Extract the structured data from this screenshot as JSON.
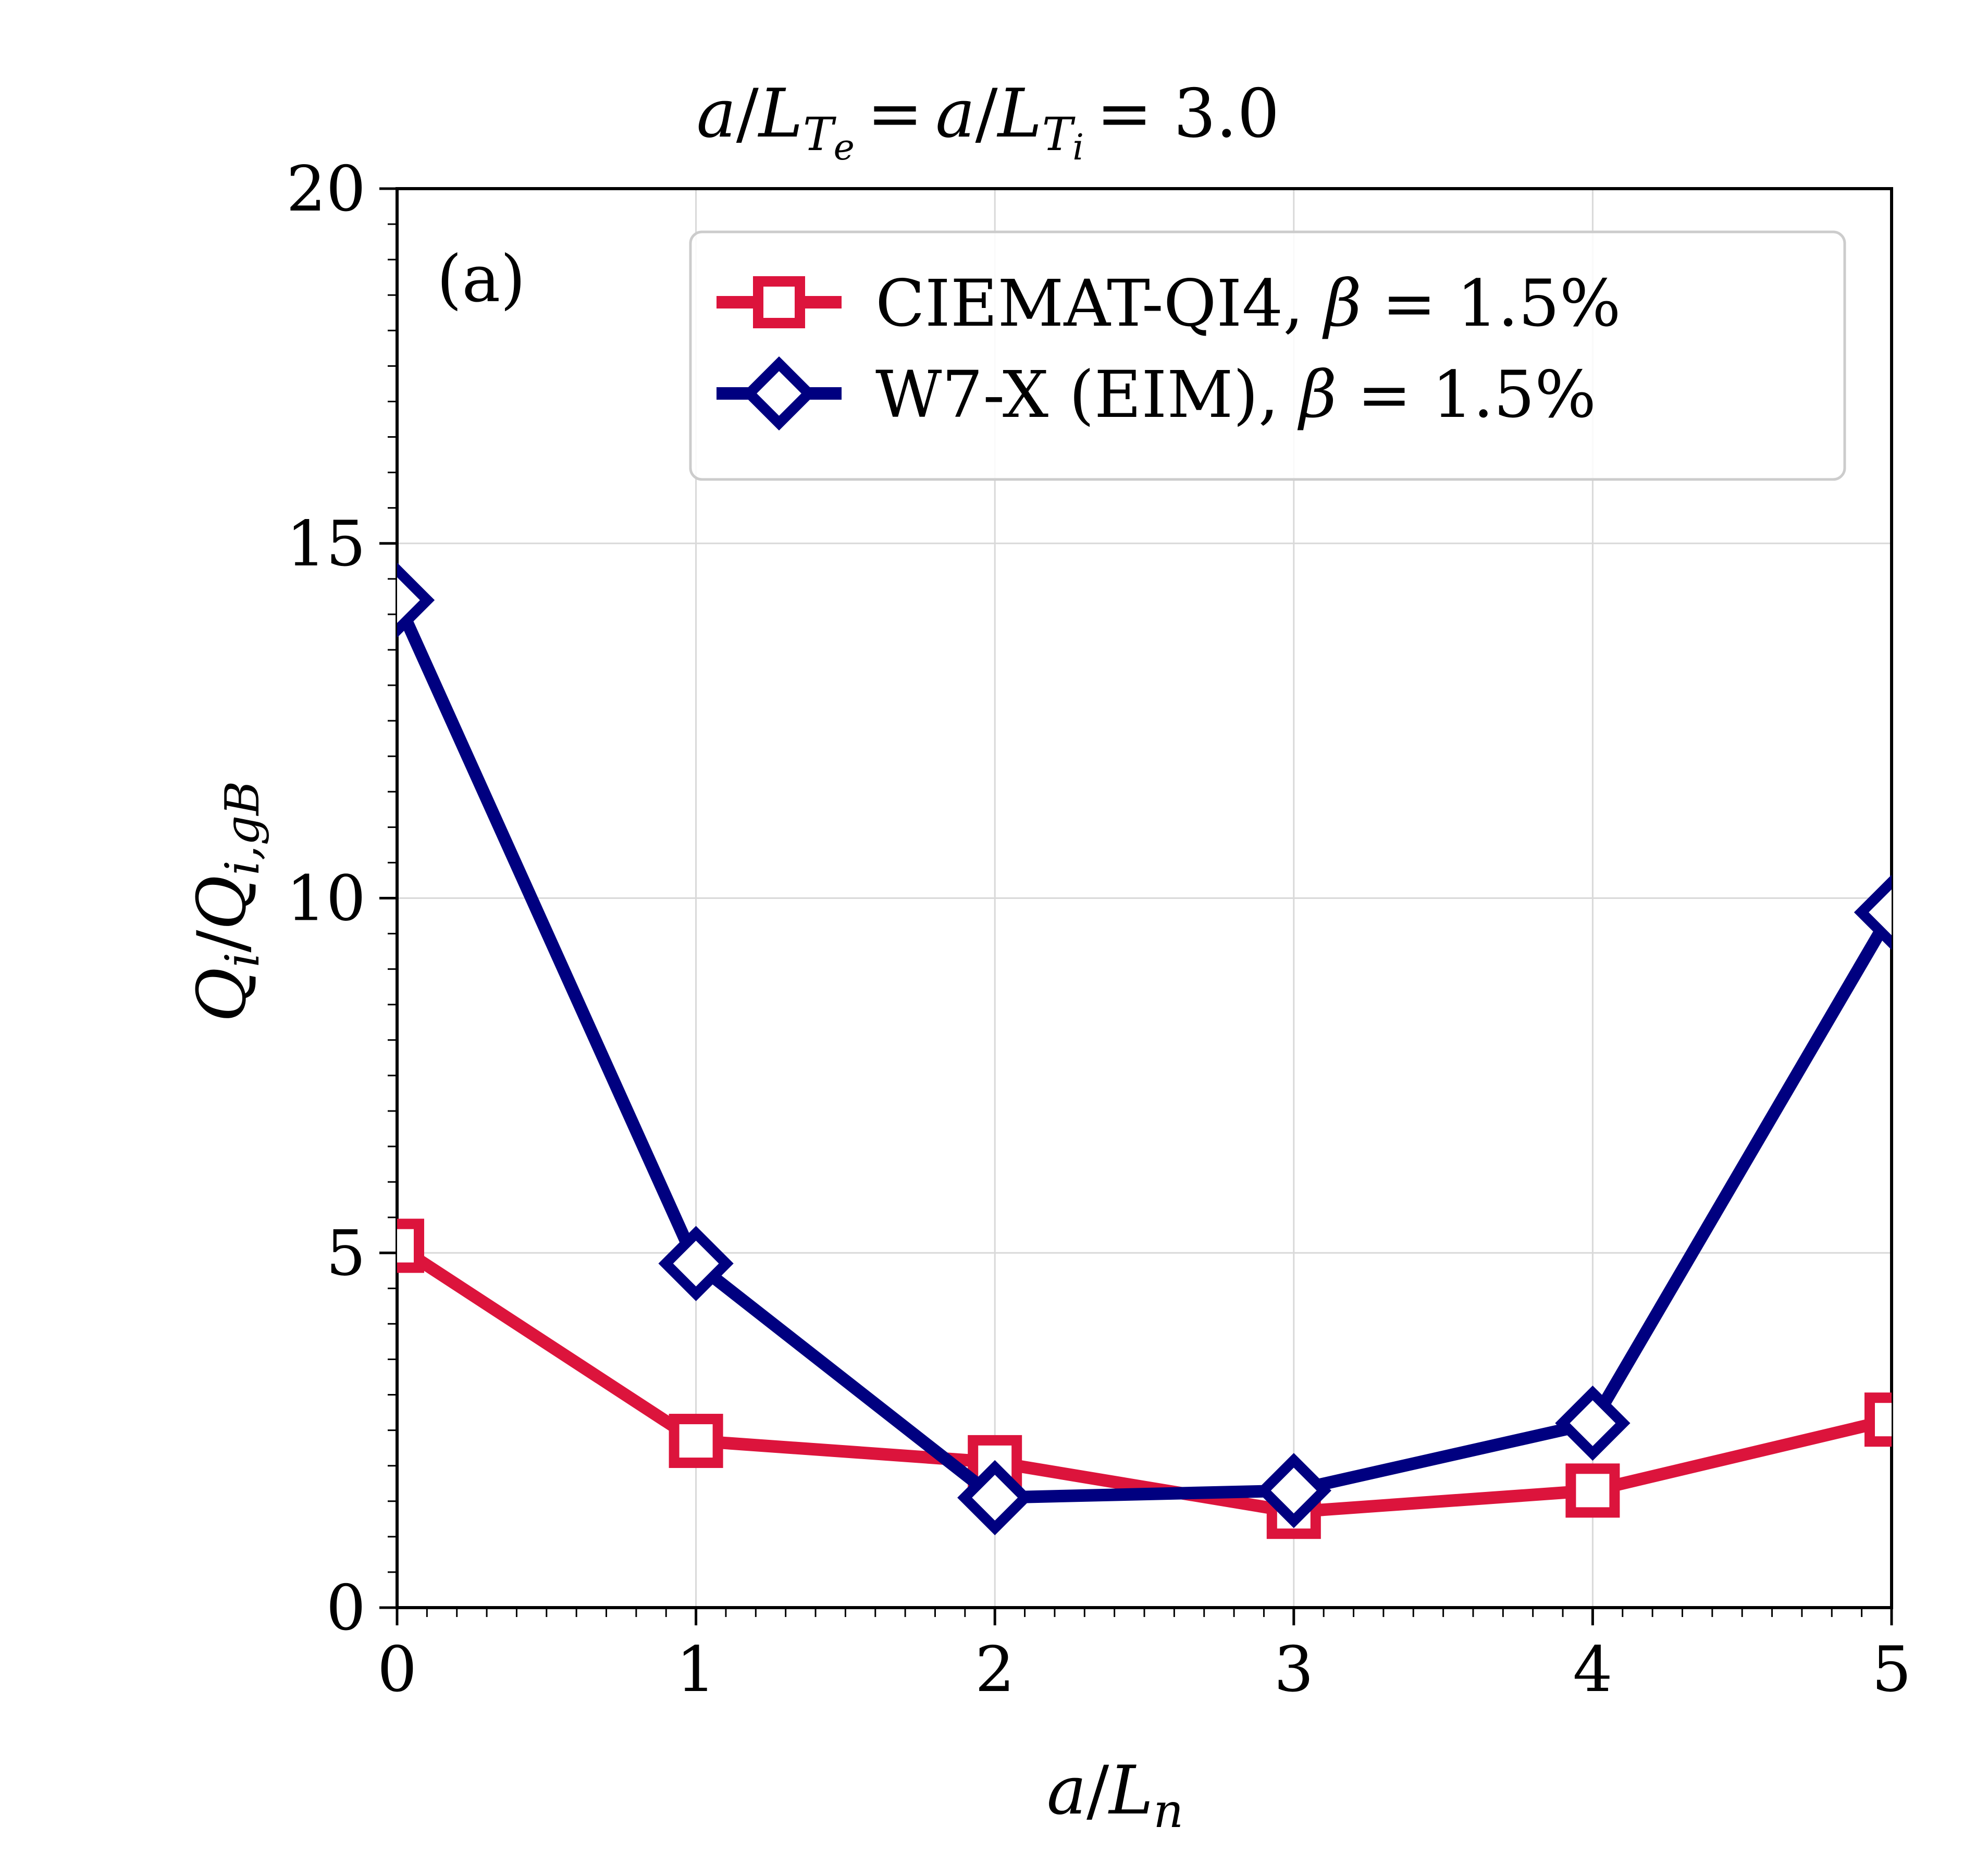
{
  "chart_data": {
    "type": "line",
    "title": "a/L_Te = a/L_Ti = 3.0",
    "title_parts": {
      "a1": "a",
      "L1": "L",
      "sub1": "T",
      "subsub1": "e",
      "eq1": "=",
      "a2": "a",
      "L2": "L",
      "sub2": "T",
      "subsub2": "i",
      "eq2": "= 3.0"
    },
    "xlabel": "a/L_n",
    "xlabel_parts": {
      "a": "a",
      "L": "L",
      "sub": "n"
    },
    "ylabel": "Q_i/Q_i,gB",
    "ylabel_parts": {
      "Q1": "Q",
      "sub1": "i",
      "Q2": "Q",
      "sub2": "i,gB"
    },
    "panel_label": "(a)",
    "xlim": [
      0,
      5
    ],
    "ylim": [
      0,
      20
    ],
    "xticks": [
      "0",
      "1",
      "2",
      "3",
      "4",
      "5"
    ],
    "yticks": [
      "0",
      "5",
      "10",
      "15",
      "20"
    ],
    "grid": true,
    "legend_position": "top-right",
    "x": [
      0,
      1,
      2,
      3,
      4,
      5
    ],
    "series": [
      {
        "name": "CIEMAT-QI4, β = 1.5%",
        "label_main": "CIEMAT-QI4, ",
        "label_beta": "β",
        "label_value": " = 1.5%",
        "color": "#dc143c",
        "marker": "square",
        "values": [
          5.1,
          2.35,
          2.05,
          1.35,
          1.65,
          2.65
        ]
      },
      {
        "name": "W7-X (EIM), β = 1.5%",
        "label_main": "W7-X (EIM), ",
        "label_beta": "β",
        "label_value": " = 1.5%",
        "color": "#000080",
        "marker": "diamond",
        "values": [
          14.2,
          4.85,
          1.55,
          1.65,
          2.6,
          9.8
        ]
      }
    ]
  }
}
